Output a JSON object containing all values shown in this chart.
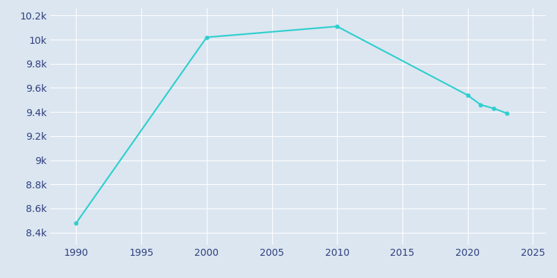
{
  "years": [
    1990,
    2000,
    2010,
    2020,
    2021,
    2022,
    2023
  ],
  "population": [
    8480,
    10020,
    10110,
    9540,
    9460,
    9430,
    9390
  ],
  "line_color": "#2ecfcf",
  "marker": "o",
  "marker_size": 3.5,
  "bg_color": "#dce6f0",
  "plot_bg_color": "#dce6f0",
  "grid_color": "#ffffff",
  "tick_color": "#2e3f7f",
  "xlim": [
    1988,
    2026
  ],
  "ylim": [
    8300,
    10260
  ],
  "xticks": [
    1990,
    1995,
    2000,
    2005,
    2010,
    2015,
    2020,
    2025
  ],
  "ytick_values": [
    8400,
    8600,
    8800,
    9000,
    9200,
    9400,
    9600,
    9800,
    10000,
    10200
  ],
  "ytick_labels": [
    "8.4k",
    "8.6k",
    "8.8k",
    "9k",
    "9.2k",
    "9.4k",
    "9.6k",
    "9.8k",
    "10k",
    "10.2k"
  ]
}
